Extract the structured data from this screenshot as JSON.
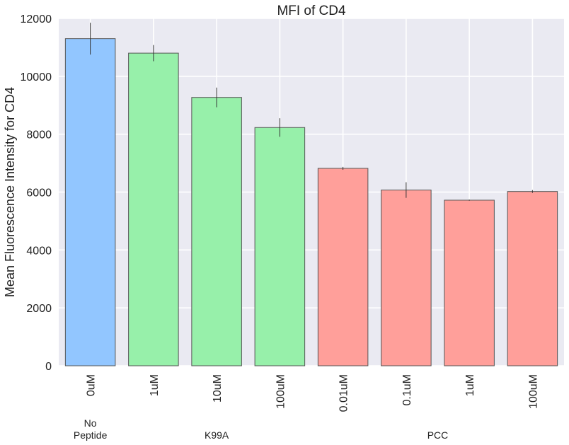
{
  "chart_data": {
    "type": "bar",
    "title": "MFI of CD4",
    "ylabel": "Mean Fluorescence Intensity for CD4",
    "xlabel": "",
    "ylim": [
      0,
      12000
    ],
    "yticks": [
      0,
      2000,
      4000,
      6000,
      8000,
      10000,
      12000
    ],
    "grid": true,
    "categories": [
      "0uM",
      "1uM",
      "10uM",
      "100uM",
      "0.01uM",
      "0.1uM",
      "1uM",
      "100uM"
    ],
    "values": [
      11300,
      10800,
      9270,
      8230,
      6820,
      6070,
      5720,
      6020
    ],
    "errors": [
      550,
      280,
      340,
      320,
      50,
      270,
      20,
      50
    ],
    "bar_colors": [
      "#92c6ff",
      "#97f0aa",
      "#97f0aa",
      "#97f0aa",
      "#ff9f9a",
      "#ff9f9a",
      "#ff9f9a",
      "#ff9f9a"
    ],
    "groups": [
      {
        "label_lines": [
          "No",
          "Peptide"
        ],
        "start": 0,
        "end": 0
      },
      {
        "label_lines": [
          "K99A"
        ],
        "start": 1,
        "end": 3
      },
      {
        "label_lines": [
          "PCC"
        ],
        "start": 4,
        "end": 7
      }
    ]
  },
  "colors": {
    "plot_background": "#eaeaf2",
    "grid": "#ffffff",
    "bar_edge": "#555555",
    "error_bar": "#333333"
  }
}
